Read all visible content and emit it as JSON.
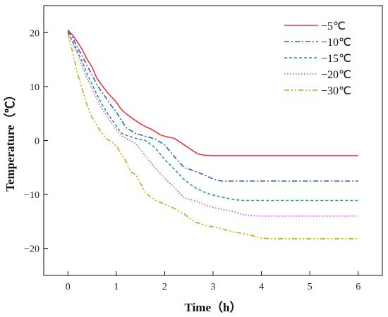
{
  "chart_data": {
    "type": "line",
    "title": "",
    "xlabel": "Time（h）",
    "ylabel": "Temperature（℃）",
    "xlim": [
      -0.5,
      6.5
    ],
    "ylim": [
      -25,
      25
    ],
    "xticks": [
      "0",
      "1",
      "2",
      "3",
      "4",
      "5",
      "6"
    ],
    "yticks": [
      "20",
      "10",
      "0",
      "−10",
      "−20"
    ],
    "ytick_values": [
      20,
      10,
      0,
      -10,
      -20
    ],
    "xtick_values": [
      0,
      1,
      2,
      3,
      4,
      5,
      6
    ],
    "grid": false,
    "legend_position": "top-right",
    "series": [
      {
        "name": "−5℃",
        "color": "#e8393c",
        "dash": "solid",
        "x": [
          0,
          0.1,
          0.2,
          0.3,
          0.4,
          0.5,
          0.6,
          0.7,
          0.8,
          0.9,
          1.0,
          1.1,
          1.2,
          1.3,
          1.4,
          1.5,
          1.6,
          1.7,
          1.8,
          1.9,
          2.0,
          2.2,
          2.4,
          2.6,
          2.7,
          2.8,
          3.0,
          4.0,
          5.0,
          6.0
        ],
        "y": [
          20.5,
          19.5,
          18.2,
          16.8,
          15.0,
          13.6,
          11.5,
          10.3,
          9.1,
          8.1,
          7.1,
          5.8,
          5.0,
          4.3,
          3.7,
          3.1,
          2.6,
          2.2,
          1.7,
          1.1,
          0.8,
          0.4,
          -0.8,
          -2.0,
          -2.5,
          -2.7,
          -2.8,
          -2.8,
          -2.8,
          -2.8
        ]
      },
      {
        "name": "−10℃",
        "color": "#2e5fbd",
        "dash": "dashdot",
        "x": [
          0,
          0.1,
          0.2,
          0.3,
          0.4,
          0.5,
          0.6,
          0.7,
          0.8,
          0.9,
          1.0,
          1.1,
          1.2,
          1.4,
          1.6,
          1.8,
          2.0,
          2.2,
          2.4,
          2.6,
          2.8,
          3.0,
          3.1,
          3.2,
          4.0,
          5.0,
          6.0
        ],
        "y": [
          20.3,
          19.0,
          17.2,
          15.6,
          13.8,
          12.1,
          10.3,
          9.0,
          7.8,
          6.4,
          5.3,
          3.8,
          2.4,
          1.3,
          0.8,
          0.3,
          -0.8,
          -3.0,
          -5.0,
          -5.6,
          -6.3,
          -7.1,
          -7.4,
          -7.5,
          -7.5,
          -7.5,
          -7.5
        ]
      },
      {
        "name": "−15℃",
        "color": "#2a9c6a",
        "dash": "dashed",
        "x": [
          0,
          0.1,
          0.2,
          0.3,
          0.4,
          0.5,
          0.6,
          0.7,
          0.8,
          0.9,
          1.0,
          1.1,
          1.2,
          1.4,
          1.6,
          1.8,
          2.0,
          2.2,
          2.4,
          2.6,
          2.8,
          3.0,
          3.2,
          3.4,
          3.6,
          4.0,
          5.0,
          6.0
        ],
        "y": [
          20.0,
          18.3,
          16.5,
          14.5,
          12.3,
          10.4,
          8.5,
          6.8,
          5.3,
          4.0,
          2.7,
          1.4,
          1.0,
          0.4,
          0.0,
          -1.3,
          -3.5,
          -5.3,
          -7.2,
          -8.6,
          -9.5,
          -10.1,
          -10.5,
          -10.9,
          -11.1,
          -11.1,
          -11.1,
          -11.1
        ]
      },
      {
        "name": "−20℃",
        "color": "#b350d6",
        "dash": "dotted",
        "x": [
          0,
          0.1,
          0.2,
          0.3,
          0.4,
          0.5,
          0.6,
          0.7,
          0.8,
          0.9,
          1.0,
          1.1,
          1.2,
          1.4,
          1.6,
          1.8,
          2.0,
          2.2,
          2.4,
          2.6,
          2.8,
          3.0,
          3.2,
          3.4,
          3.6,
          3.8,
          4.0,
          5.0,
          6.0
        ],
        "y": [
          20.2,
          18.1,
          16.0,
          13.6,
          11.4,
          9.6,
          7.7,
          5.9,
          4.6,
          3.3,
          2.0,
          0.9,
          0.4,
          -0.5,
          -2.8,
          -5.0,
          -7.0,
          -8.7,
          -10.6,
          -11.1,
          -11.8,
          -12.4,
          -12.8,
          -13.1,
          -13.7,
          -13.9,
          -14.0,
          -14.0,
          -14.0
        ]
      },
      {
        "name": "−30℃",
        "color": "#c9a41c",
        "dash": "dashdotdot",
        "x": [
          0,
          0.1,
          0.2,
          0.3,
          0.4,
          0.5,
          0.6,
          0.7,
          0.8,
          0.9,
          1.0,
          1.1,
          1.2,
          1.3,
          1.4,
          1.5,
          1.6,
          1.8,
          2.0,
          2.2,
          2.4,
          2.6,
          2.8,
          3.0,
          3.2,
          3.4,
          3.6,
          3.8,
          4.0,
          4.2,
          5.0,
          6.0
        ],
        "y": [
          19.8,
          16.3,
          12.4,
          9.4,
          6.4,
          4.3,
          2.8,
          1.4,
          0.3,
          -0.2,
          -1.0,
          -2.4,
          -3.9,
          -5.8,
          -6.3,
          -7.9,
          -9.7,
          -11.0,
          -11.8,
          -12.6,
          -13.6,
          -15.0,
          -15.6,
          -16.0,
          -16.4,
          -16.9,
          -17.2,
          -17.6,
          -18.1,
          -18.2,
          -18.2,
          -18.2
        ]
      }
    ]
  }
}
